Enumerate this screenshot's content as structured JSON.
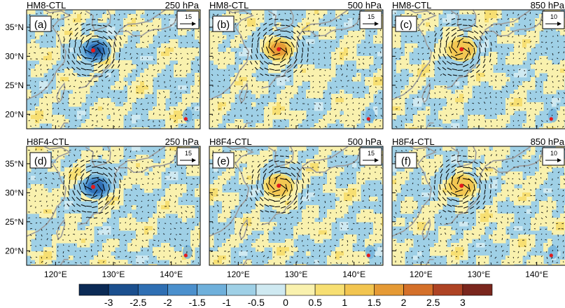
{
  "chart_data": {
    "type": "heatmap",
    "description_kind": "map-difference-panels-with-wind-vectors",
    "rows": 2,
    "cols": 3,
    "lon_range": [
      115,
      145
    ],
    "lat_range": [
      17.5,
      38
    ],
    "x_ticks": [
      {
        "value": 120,
        "label": "120°E"
      },
      {
        "value": 130,
        "label": "130°E"
      },
      {
        "value": 140,
        "label": "140°E"
      }
    ],
    "y_ticks": [
      {
        "value": 20,
        "label": "20°N"
      },
      {
        "value": 25,
        "label": "25°N"
      },
      {
        "value": 30,
        "label": "30°N"
      },
      {
        "value": 35,
        "label": "35°N"
      }
    ],
    "panels": [
      {
        "tag": "(a)",
        "experiment": "HM8-CTL",
        "level": "250 hPa",
        "ref_vector": "15",
        "typhoon_center": [
          126.5,
          31.0
        ],
        "second_center": [
          142.5,
          19.2
        ],
        "intensity": -2.5
      },
      {
        "tag": "(b)",
        "experiment": "HM8-CTL",
        "level": "500 hPa",
        "ref_vector": "15",
        "typhoon_center": [
          127.0,
          31.2
        ],
        "second_center": [
          142.5,
          19.2
        ],
        "intensity": 2.0
      },
      {
        "tag": "(c)",
        "experiment": "HM8-CTL",
        "level": "850 hPa",
        "ref_vector": "10",
        "typhoon_center": [
          127.0,
          31.2
        ],
        "second_center": [
          142.5,
          19.2
        ],
        "intensity": 1.5
      },
      {
        "tag": "(d)",
        "experiment": "H8F4-CTL",
        "level": "250 hPa",
        "ref_vector": "15",
        "typhoon_center": [
          126.5,
          31.0
        ],
        "second_center": [
          142.5,
          19.2
        ],
        "intensity": -2.0
      },
      {
        "tag": "(e)",
        "experiment": "H8F4-CTL",
        "level": "500 hPa",
        "ref_vector": "15",
        "typhoon_center": [
          127.0,
          31.2
        ],
        "second_center": [
          142.5,
          19.2
        ],
        "intensity": 1.5
      },
      {
        "tag": "(f)",
        "experiment": "H8F4-CTL",
        "level": "850 hPa",
        "ref_vector": "10",
        "typhoon_center": [
          127.0,
          31.2
        ],
        "second_center": [
          142.5,
          19.2
        ],
        "intensity": 1.0
      }
    ],
    "colorbar": {
      "levels": [
        "-3",
        "-2.5",
        "-2",
        "-1.5",
        "-1",
        "-0.5",
        "0",
        "0.5",
        "1",
        "1.5",
        "2",
        "2.5",
        "3"
      ],
      "colors": [
        "#0b2a55",
        "#1b4f8e",
        "#2f6fb3",
        "#4b90cd",
        "#6fb0db",
        "#9fd0e6",
        "#cfe9f1",
        "#f9f1ae",
        "#f7df72",
        "#f2c550",
        "#e59a35",
        "#d4702a",
        "#ae4324",
        "#7a261d"
      ]
    },
    "marker_color": "#e31a1c",
    "coast_color": "#9a9a9a"
  }
}
